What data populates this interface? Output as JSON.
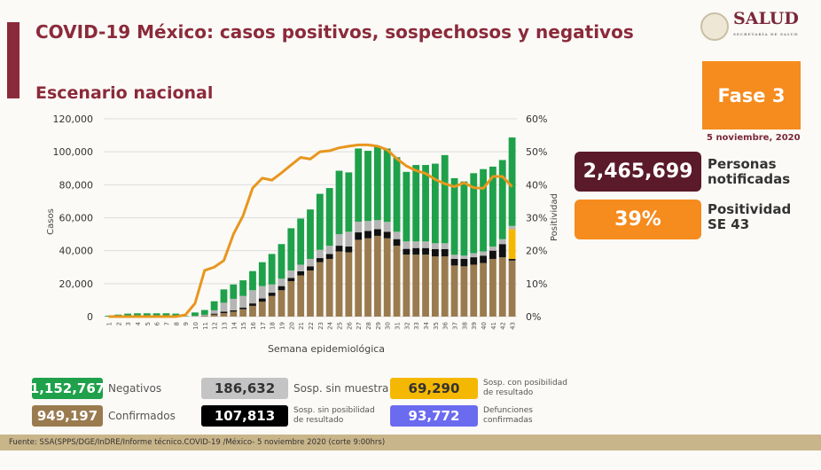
{
  "header": {
    "title": "COVID-19 México: casos positivos, sospechosos y negativos",
    "subtitle": "Escenario nacional",
    "logo_text": "SALUD",
    "logo_sub": "SECRETARÍA DE SALUD"
  },
  "side": {
    "fase": "Fase 3",
    "date": "5 noviembre, 2020",
    "personas_value": "2,465,699",
    "personas_label1": "Personas",
    "personas_label2": "notificadas",
    "positividad_value": "39%",
    "positividad_label1": "Positividad",
    "positividad_label2": "SE 43"
  },
  "legend": {
    "negativos": {
      "value": "1,152,767",
      "label": "Negativos"
    },
    "sin_muestra": {
      "value": "186,632",
      "label": "Sosp. sin muestra"
    },
    "con_posibilidad": {
      "value": "69,290",
      "label1": "Sosp. con posibilidad",
      "label2": "de resultado"
    },
    "confirmados": {
      "value": "949,197",
      "label": "Confirmados"
    },
    "sin_posibilidad": {
      "value": "107,813",
      "label1": "Sosp. sin posibilidad",
      "label2": "de resultado"
    },
    "defunciones": {
      "value": "93,772",
      "label1": "Defunciones",
      "label2": "confirmadas"
    }
  },
  "footer": {
    "source": "Fuente: SSA(SPPS/DGE/InDRE/Informe técnico.COVID-19 /México- 5 noviembre 2020 (corte 9:00hrs)"
  },
  "colors": {
    "confirmados": "#9a7b4f",
    "sin_posibilidad": "#111111",
    "sin_muestra": "#b5b5b5",
    "con_posibilidad": "#f5b800",
    "negativos": "#1ea14a",
    "positividad": "#e8961e",
    "defunciones": "#6b6bf0",
    "brand": "#8b2a3a"
  },
  "chart_data": {
    "type": "bar",
    "stacked": true,
    "xlabel": "Semana epidemiológica",
    "ylabel": "Casos",
    "y2label": "Positividad",
    "ylim": [
      0,
      120000
    ],
    "y2lim": [
      0,
      60
    ],
    "yticks": [
      "0",
      "20,000",
      "40,000",
      "60,000",
      "80,000",
      "100,000",
      "120,000"
    ],
    "y2ticks": [
      "0%",
      "10%",
      "20%",
      "30%",
      "40%",
      "50%",
      "60%"
    ],
    "grid": true,
    "categories": [
      1,
      2,
      3,
      4,
      5,
      6,
      7,
      8,
      9,
      10,
      11,
      12,
      13,
      14,
      15,
      16,
      17,
      18,
      19,
      20,
      21,
      22,
      23,
      24,
      25,
      26,
      27,
      28,
      29,
      30,
      31,
      32,
      33,
      34,
      35,
      36,
      37,
      38,
      39,
      40,
      41,
      42,
      43
    ],
    "series": [
      {
        "name": "Confirmados",
        "key": "confirmados",
        "values": [
          0,
          0,
          0,
          0,
          0,
          0,
          0,
          0,
          0,
          200,
          500,
          1200,
          2100,
          3000,
          4500,
          6500,
          9000,
          12500,
          16000,
          21500,
          25000,
          28000,
          33000,
          35000,
          39500,
          39000,
          46600,
          47500,
          49000,
          47500,
          43000,
          37600,
          37600,
          37600,
          36500,
          36500,
          31000,
          30500,
          31500,
          32500,
          35000,
          36000,
          34000
        ]
      },
      {
        "name": "Sosp. sin posibilidad de resultado",
        "key": "sin_posibilidad",
        "values": [
          0,
          0,
          0,
          0,
          0,
          0,
          0,
          0,
          0,
          0,
          100,
          600,
          900,
          800,
          1000,
          1500,
          2000,
          2000,
          2500,
          2000,
          2500,
          2500,
          2500,
          3000,
          3500,
          3500,
          4500,
          4500,
          4000,
          4000,
          4000,
          3500,
          4000,
          4000,
          4500,
          4500,
          4000,
          4500,
          4500,
          4500,
          5000,
          8000,
          1000
        ]
      },
      {
        "name": "Sosp. con posibilidad de resultado",
        "key": "con_posibilidad",
        "values": [
          0,
          0,
          0,
          0,
          0,
          0,
          0,
          0,
          0,
          0,
          0,
          0,
          0,
          0,
          0,
          0,
          0,
          0,
          0,
          0,
          0,
          0,
          0,
          0,
          0,
          0,
          0,
          0,
          0,
          0,
          0,
          0,
          0,
          0,
          0,
          0,
          0,
          0,
          0,
          0,
          0,
          0,
          18000
        ]
      },
      {
        "name": "Sosp. sin muestra",
        "key": "sin_muestra",
        "values": [
          0,
          0,
          0,
          0,
          0,
          0,
          0,
          0,
          0,
          300,
          500,
          2000,
          5400,
          7000,
          7000,
          8000,
          7500,
          5000,
          4500,
          4500,
          4000,
          4500,
          5000,
          5000,
          7000,
          9000,
          6500,
          6000,
          5500,
          6000,
          4500,
          4500,
          4000,
          4000,
          3500,
          3500,
          2500,
          2000,
          2500,
          2500,
          2500,
          3000,
          2000
        ]
      },
      {
        "name": "Negativos",
        "key": "negativos",
        "values": [
          500,
          1200,
          1800,
          2000,
          2000,
          2000,
          2000,
          1800,
          300,
          2000,
          2900,
          5500,
          8100,
          8700,
          9500,
          11600,
          14500,
          18500,
          21000,
          25600,
          28000,
          30000,
          34000,
          35000,
          38500,
          36000,
          44400,
          42600,
          44500,
          44500,
          45200,
          42200,
          46400,
          46400,
          48300,
          53500,
          46500,
          45000,
          48500,
          50000,
          48500,
          48000,
          53700
        ]
      }
    ],
    "line": {
      "name": "Positividad",
      "axis": "y2",
      "values": [
        0,
        0,
        0,
        0,
        0,
        0,
        0,
        0,
        0.5,
        4,
        14,
        15,
        17,
        25,
        30.6,
        39,
        42,
        41.4,
        43.6,
        46,
        48.3,
        47.8,
        50,
        50.3,
        51.2,
        51.7,
        52.1,
        52.1,
        51.7,
        50.6,
        47.9,
        45.7,
        44.3,
        43.4,
        41.6,
        40.3,
        39.4,
        40.6,
        39.1,
        38.9,
        42.5,
        42.5,
        39.4
      ]
    }
  }
}
